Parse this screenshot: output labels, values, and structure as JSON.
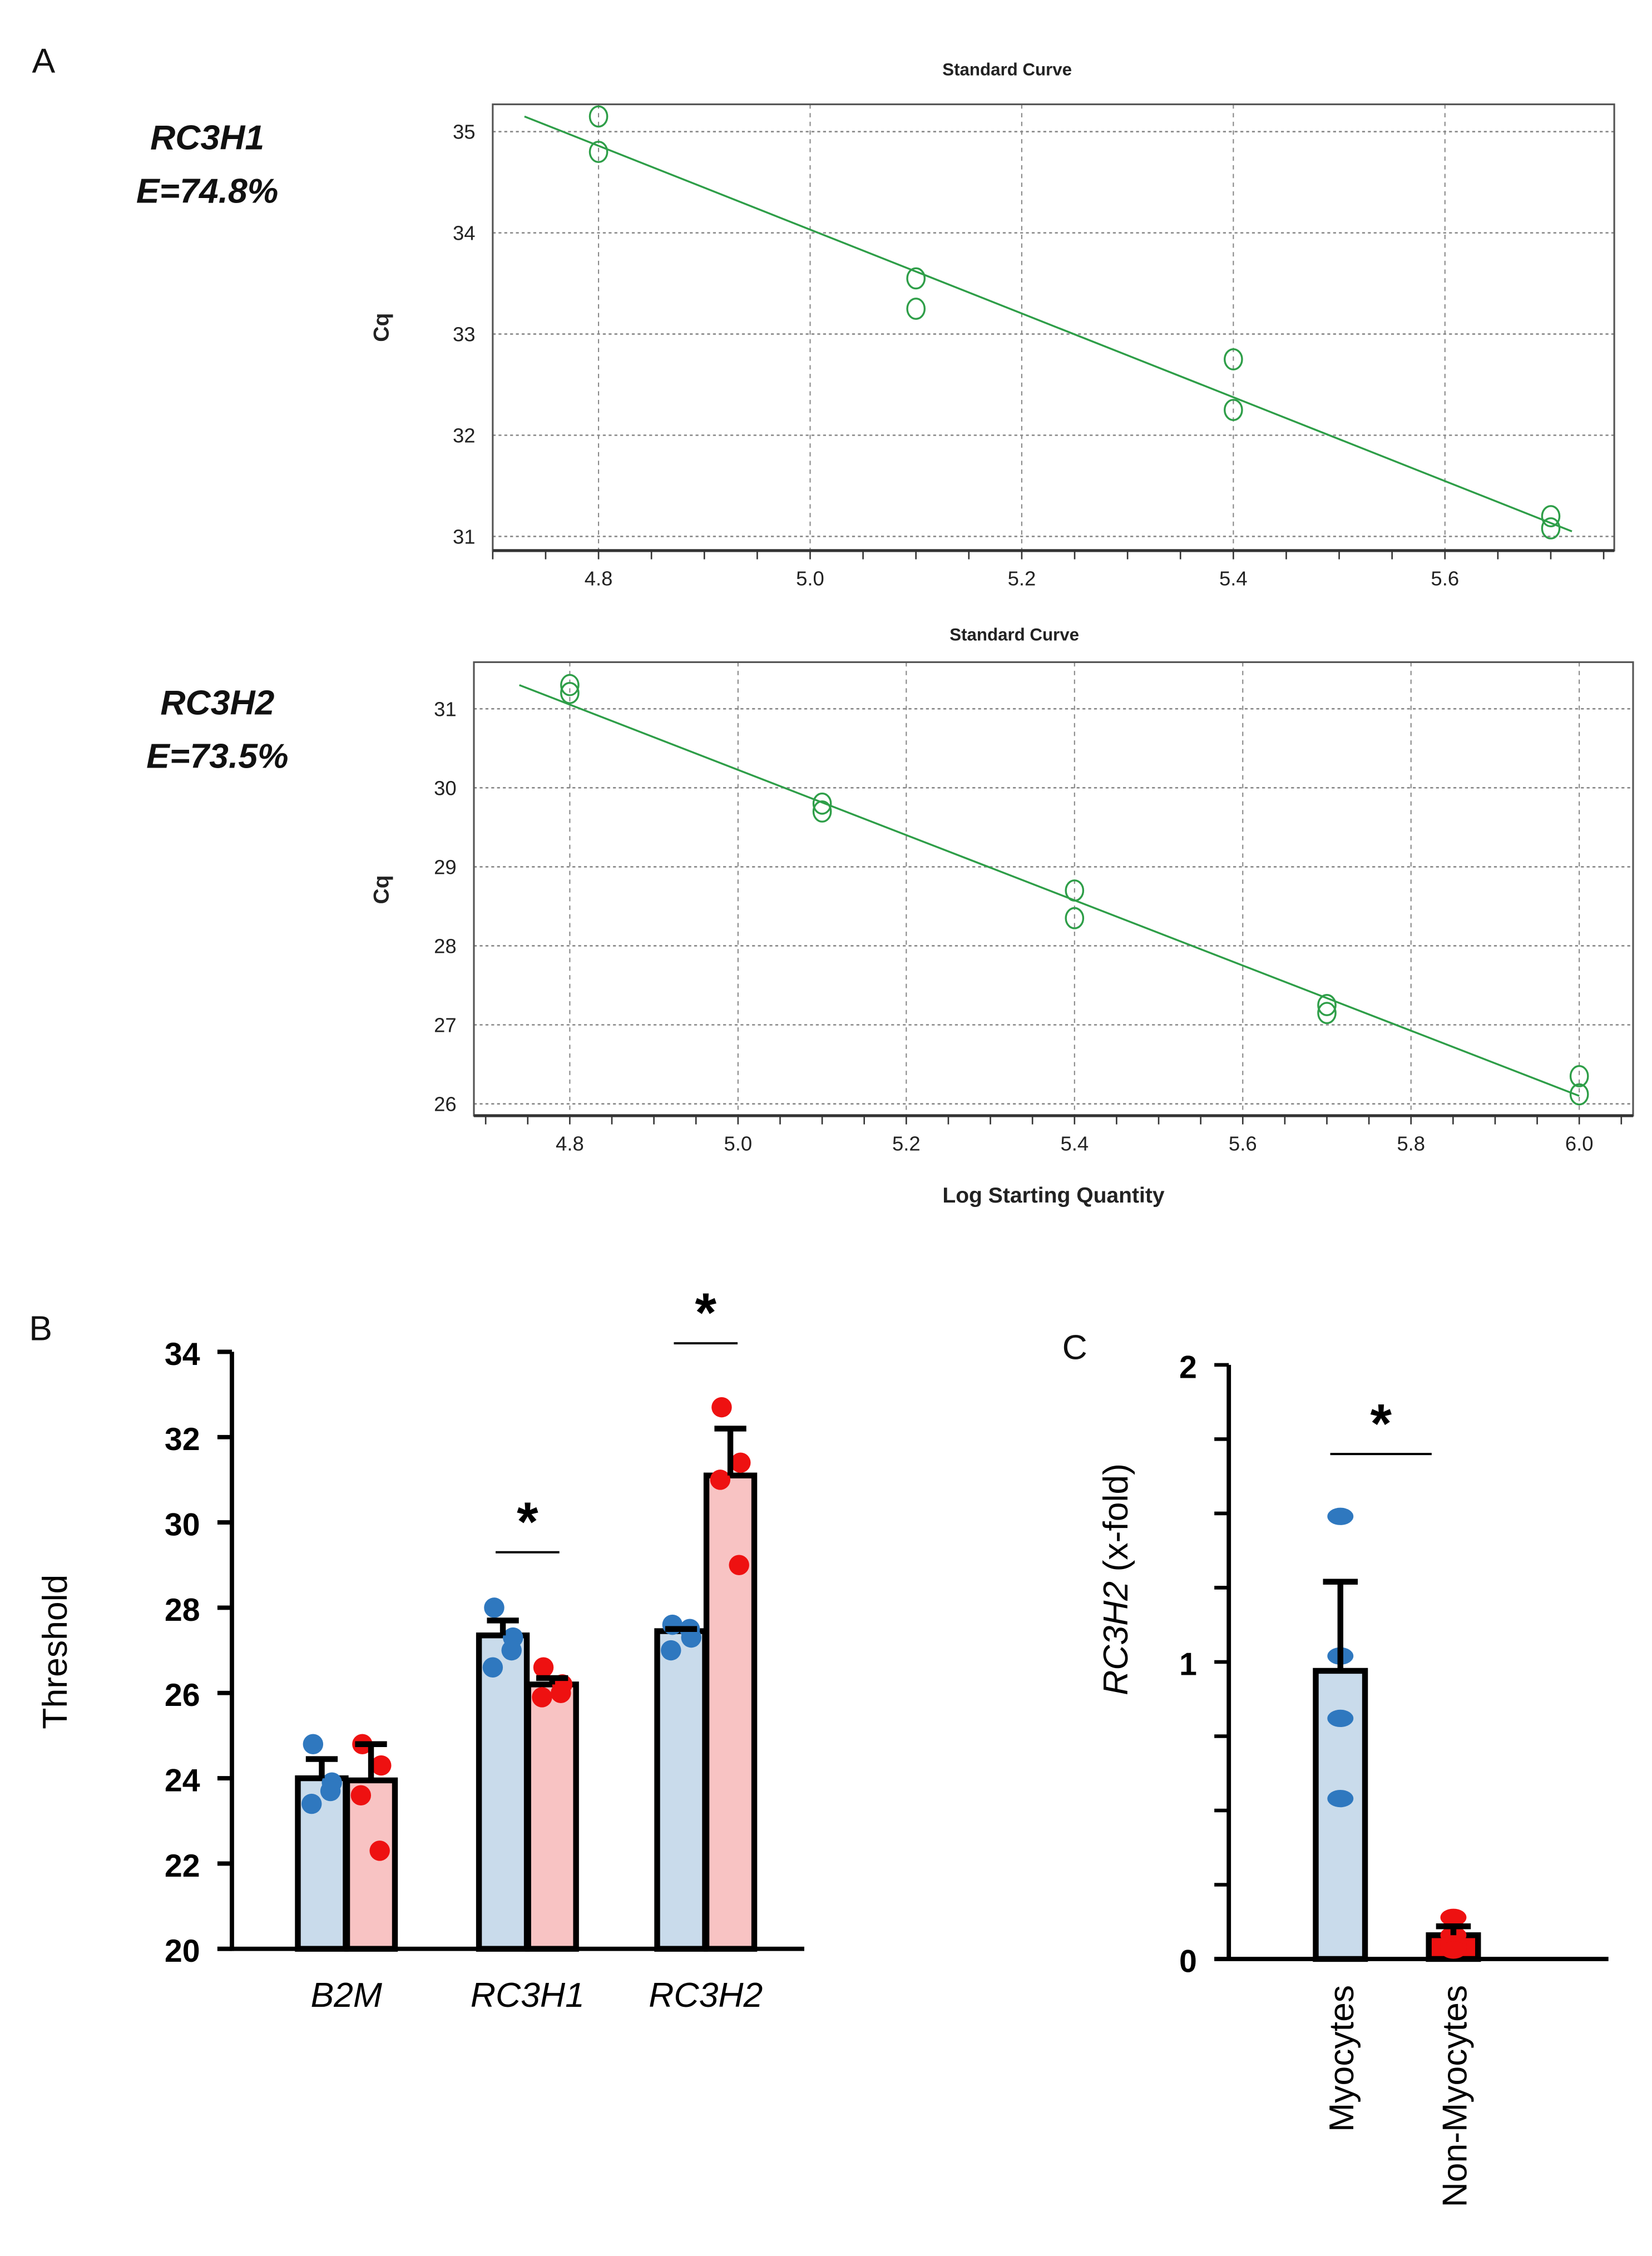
{
  "panels": {
    "a": "A",
    "b": "B",
    "c": "C"
  },
  "colors": {
    "fit": "#2e9e48",
    "grid": "#888888",
    "blue_bar": "#c9dbeb",
    "red_bar": "#f8c3c3",
    "blue_dot": "#2f78bf",
    "red_dot": "#ee1111"
  },
  "chart_data": [
    {
      "type": "scatter",
      "title": "Standard Curve",
      "gene": "RC3H1",
      "efficiency": "E=74.8%",
      "xlabel": "",
      "ylabel": "Cq",
      "xlim": [
        4.7,
        5.76
      ],
      "ylim": [
        30.86,
        35.27
      ],
      "grid": true,
      "xticks": [
        "4.8",
        "5.0",
        "5.2",
        "5.4",
        "5.6"
      ],
      "yticks": [
        "31",
        "32",
        "33",
        "34",
        "35"
      ],
      "points": [
        [
          4.8,
          35.15
        ],
        [
          4.8,
          34.8
        ],
        [
          5.1,
          33.55
        ],
        [
          5.1,
          33.25
        ],
        [
          5.4,
          32.75
        ],
        [
          5.4,
          32.25
        ],
        [
          5.7,
          31.2
        ],
        [
          5.7,
          31.08
        ]
      ],
      "fit_line": [
        [
          4.73,
          35.15
        ],
        [
          5.72,
          31.05
        ]
      ]
    },
    {
      "type": "scatter",
      "title": "Standard Curve",
      "gene": "RC3H2",
      "efficiency": "E=73.5%",
      "xlabel": "Log Starting Quantity",
      "ylabel": "Cq",
      "xlim": [
        4.686,
        6.064
      ],
      "ylim": [
        25.85,
        31.59
      ],
      "grid": true,
      "xticks": [
        "4.8",
        "5.0",
        "5.2",
        "5.4",
        "5.6",
        "5.8",
        "6.0"
      ],
      "yticks": [
        "26",
        "27",
        "28",
        "29",
        "30",
        "31"
      ],
      "points": [
        [
          4.8,
          31.3
        ],
        [
          4.8,
          31.2
        ],
        [
          5.1,
          29.8
        ],
        [
          5.1,
          29.7
        ],
        [
          5.4,
          28.7
        ],
        [
          5.4,
          28.35
        ],
        [
          5.7,
          27.25
        ],
        [
          5.7,
          27.15
        ],
        [
          6.0,
          26.35
        ],
        [
          6.0,
          26.12
        ]
      ],
      "fit_line": [
        [
          4.74,
          31.3
        ],
        [
          6.0,
          26.1
        ]
      ]
    },
    {
      "type": "bar",
      "ylabel": "Threshold",
      "ylim": [
        20,
        34
      ],
      "yticks": [
        "20",
        "22",
        "24",
        "26",
        "28",
        "30",
        "32",
        "34"
      ],
      "categories": [
        "B2M",
        "RC3H1",
        "RC3H2"
      ],
      "series": [
        {
          "color": "blue",
          "values": [
            24.0,
            27.35,
            27.45
          ],
          "error_top": [
            24.45,
            27.7,
            27.5
          ],
          "points": [
            [
              24.8,
              23.9,
              23.4,
              23.7
            ],
            [
              28.0,
              27.3,
              26.6,
              27.0
            ],
            [
              27.6,
              27.3,
              27.0,
              27.5
            ]
          ]
        },
        {
          "color": "red",
          "values": [
            23.95,
            26.2,
            31.1
          ],
          "error_top": [
            24.8,
            26.35,
            32.2
          ],
          "points": [
            [
              24.8,
              24.3,
              23.6,
              22.3
            ],
            [
              26.6,
              26.2,
              25.9,
              26.0
            ],
            [
              32.7,
              31.4,
              31.0,
              29.0
            ]
          ]
        }
      ],
      "significance": [
        {
          "category": "RC3H1",
          "label": "*",
          "level": 29.3
        },
        {
          "category": "RC3H2",
          "label": "*",
          "level": 34.2
        }
      ]
    },
    {
      "type": "bar",
      "ylabel_italic": "RC3H2",
      "ylabel_rest": " (x-fold)",
      "ylim": [
        0,
        2
      ],
      "yticks": [
        "0",
        "1",
        "2"
      ],
      "categories": [
        "Myocytes",
        "Non-Myocytes"
      ],
      "values": [
        0.97,
        0.08
      ],
      "error_top": [
        1.27,
        0.11
      ],
      "points": [
        [
          1.49,
          1.02,
          0.81,
          0.54
        ],
        [
          0.14,
          0.08,
          0.05,
          0.03
        ]
      ],
      "significance": [
        {
          "label": "*",
          "level": 1.7
        }
      ]
    }
  ]
}
